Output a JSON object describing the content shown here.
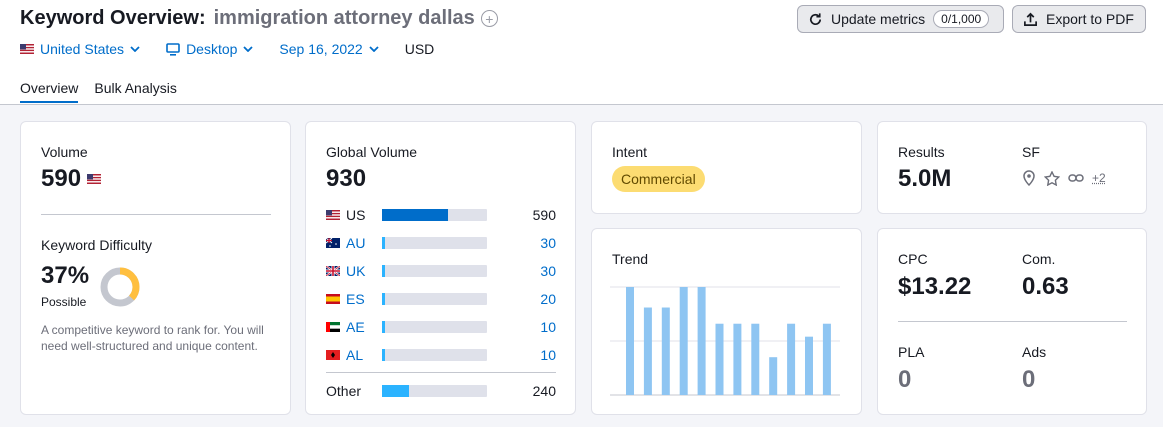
{
  "header": {
    "title_label": "Keyword Overview:",
    "keyword": "immigration attorney dallas",
    "filters": {
      "country": "United States",
      "device": "Desktop",
      "date": "Sep 16, 2022",
      "currency": "USD"
    },
    "tabs": [
      {
        "label": "Overview"
      },
      {
        "label": "Bulk Analysis"
      }
    ],
    "update_metrics_label": "Update metrics",
    "update_metrics_counter": "0/1,000",
    "export_label": "Export to PDF"
  },
  "volume_card": {
    "label": "Volume",
    "value": "590",
    "kd_label": "Keyword Difficulty",
    "kd_value": "37%",
    "kd_percent": 37,
    "kd_level": "Possible",
    "kd_description": "A competitive keyword to rank for. You will need well-structured and unique content."
  },
  "global_card": {
    "label": "Global Volume",
    "value": "930",
    "countries": [
      {
        "code": "US",
        "value": "590",
        "fraction": 0.63
      },
      {
        "code": "AU",
        "value": "30",
        "fraction": 0.03
      },
      {
        "code": "UK",
        "value": "30",
        "fraction": 0.03
      },
      {
        "code": "ES",
        "value": "20",
        "fraction": 0.03
      },
      {
        "code": "AE",
        "value": "10",
        "fraction": 0.03
      },
      {
        "code": "AL",
        "value": "10",
        "fraction": 0.03
      }
    ],
    "other": {
      "label": "Other",
      "value": "240",
      "fraction": 0.26
    }
  },
  "intent_card": {
    "label": "Intent",
    "value": "Commercial"
  },
  "trend_card": {
    "label": "Trend",
    "values": [
      100,
      81,
      81,
      100,
      100,
      66,
      66,
      66,
      35,
      66,
      54,
      66
    ]
  },
  "results_card": {
    "results_label": "Results",
    "results_value": "5.0M",
    "sf_label": "SF",
    "sf_icons": [
      "location-icon",
      "star-icon",
      "link-icon"
    ],
    "sf_more": "+2"
  },
  "cpc_card": {
    "cpc_label": "CPC",
    "cpc_value": "$13.22",
    "com_label": "Com.",
    "com_value": "0.63",
    "pla_label": "PLA",
    "pla_value": "0",
    "ads_label": "Ads",
    "ads_value": "0"
  },
  "colors": {
    "accent": "#006dca",
    "bar_us": "#006dca",
    "bar_small": "#2bb3ff",
    "bar_other": "#2bb3ff",
    "trend_bar": "#8ec5f2",
    "intent_bg": "#fcdc72",
    "kd_fill": "#ffbf3f",
    "kd_track": "#c4c7cf"
  }
}
